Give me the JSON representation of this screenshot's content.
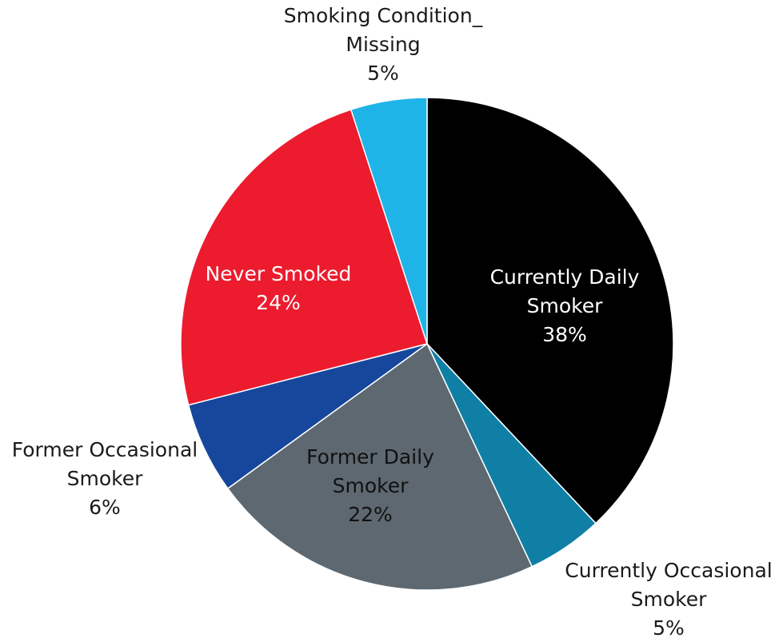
{
  "chart_data": {
    "type": "pie",
    "title": "",
    "start_angle_deg": 0,
    "direction": "clockwise",
    "slices": [
      {
        "label_lines": [
          "Currently Daily",
          "Smoker"
        ],
        "percent_label": "38%",
        "value": 38,
        "color": "#000000",
        "label_color": "#ffffff",
        "label_placement": "inside"
      },
      {
        "label_lines": [
          "Currently Occasional",
          "Smoker"
        ],
        "percent_label": "5%",
        "value": 5,
        "color": "#0f7fa6",
        "label_color": "#1a1a1a",
        "label_placement": "outside"
      },
      {
        "label_lines": [
          "Former Daily",
          "Smoker"
        ],
        "percent_label": "22%",
        "value": 22,
        "color": "#5d6870",
        "label_color": "#111111",
        "label_placement": "inside"
      },
      {
        "label_lines": [
          "Former Occasional",
          "Smoker"
        ],
        "percent_label": "6%",
        "value": 6,
        "color": "#16479c",
        "label_color": "#1a1a1a",
        "label_placement": "outside"
      },
      {
        "label_lines": [
          "Never Smoked"
        ],
        "percent_label": "24%",
        "value": 24,
        "color": "#ec1b2e",
        "label_color": "#ffffff",
        "label_placement": "inside"
      },
      {
        "label_lines": [
          "Smoking Condition_",
          "Missing"
        ],
        "percent_label": "5%",
        "value": 5,
        "color": "#1fb4e8",
        "label_color": "#1a1a1a",
        "label_placement": "outside"
      }
    ]
  }
}
